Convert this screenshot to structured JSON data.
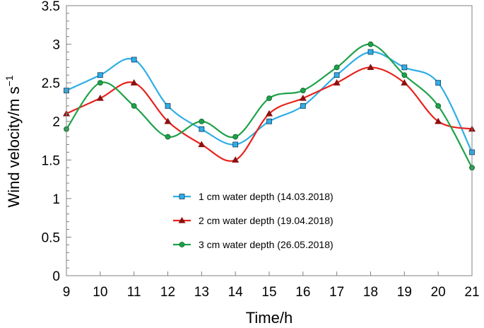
{
  "chart_data": {
    "type": "line",
    "xlabel": "Time/h",
    "ylabel_main": "Wind velocity/m s",
    "ylabel_sup": "−1",
    "x": [
      9,
      10,
      11,
      12,
      13,
      14,
      15,
      16,
      17,
      18,
      19,
      20,
      21
    ],
    "x_tick_labels": [
      "9",
      "10",
      "11",
      "12",
      "13",
      "14",
      "15",
      "16",
      "17",
      "18",
      "19",
      "20",
      "21"
    ],
    "xlim": [
      9,
      21
    ],
    "ylim": [
      0,
      3.5
    ],
    "y_ticks": [
      0,
      0.5,
      1,
      1.5,
      2,
      2.5,
      3,
      3.5
    ],
    "y_tick_labels": [
      "0",
      "0.5",
      "1",
      "1.5",
      "2",
      "2.5",
      "3",
      "3.5"
    ],
    "legend_position": "center-left",
    "series": [
      {
        "name": "1 cm water depth (14.03.2018)",
        "marker": "square",
        "color": "#2eaee6",
        "marker_fill": "#2eaee6",
        "values": [
          2.4,
          2.6,
          2.8,
          2.2,
          1.9,
          1.7,
          2.0,
          2.2,
          2.6,
          2.9,
          2.7,
          2.5,
          1.6
        ]
      },
      {
        "name": "2 cm water depth (19.04.2018)",
        "marker": "triangle",
        "color": "#e8221c",
        "marker_fill": "#8b1010",
        "values": [
          2.1,
          2.3,
          2.5,
          2.0,
          1.7,
          1.5,
          2.1,
          2.3,
          2.5,
          2.7,
          2.5,
          2.0,
          1.9
        ]
      },
      {
        "name": "3 cm water depth (26.05.2018)",
        "marker": "circle",
        "color": "#1fa24a",
        "marker_fill": "#1fa24a",
        "values": [
          1.9,
          2.5,
          2.2,
          1.8,
          2.0,
          1.8,
          2.3,
          2.4,
          2.7,
          3.0,
          2.6,
          2.2,
          1.4
        ]
      }
    ]
  }
}
